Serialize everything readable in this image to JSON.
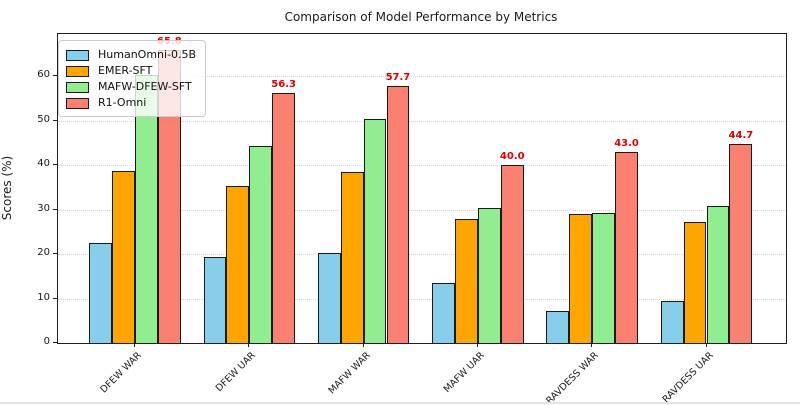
{
  "figure": {
    "title": "Comparison of Model Performance by Metrics",
    "ylabel": "Scores (%)"
  },
  "chart_data": {
    "type": "bar",
    "title": "Comparison of Model Performance by Metrics",
    "xlabel": "",
    "ylabel": "Scores (%)",
    "categories": [
      "DFEW WAR",
      "DFEW UAR",
      "MAFW WAR",
      "MAFW UAR",
      "RAVDESS WAR",
      "RAVDESS UAR"
    ],
    "series": [
      {
        "name": "HumanOmni-0.5B",
        "color": "#87CEEB",
        "values": [
          22.6,
          19.4,
          20.2,
          13.5,
          7.3,
          9.4
        ],
        "show_labels": false
      },
      {
        "name": "EMER-SFT",
        "color": "#FFA500",
        "values": [
          38.7,
          35.3,
          38.4,
          28.0,
          29.0,
          27.2
        ],
        "show_labels": false
      },
      {
        "name": "MAFW-DFEW-SFT",
        "color": "#90EE90",
        "values": [
          60.2,
          44.4,
          50.4,
          30.4,
          29.3,
          30.8
        ],
        "show_labels": false
      },
      {
        "name": "R1-Omni",
        "color": "#FA8072",
        "values": [
          65.8,
          56.3,
          57.7,
          40.0,
          43.0,
          44.7
        ],
        "show_labels": true,
        "labels": [
          "65.8",
          "56.3",
          "57.7",
          "40.0",
          "43.0",
          "44.7"
        ]
      }
    ],
    "yticks": [
      0,
      10,
      20,
      30,
      40,
      50,
      60
    ],
    "ylim": [
      0,
      69.5
    ],
    "grid": true,
    "grid_axis": "y",
    "legend_position": "upper left",
    "bar_edge_color": "#1a1a1a",
    "value_label_color": "#dd0000"
  }
}
